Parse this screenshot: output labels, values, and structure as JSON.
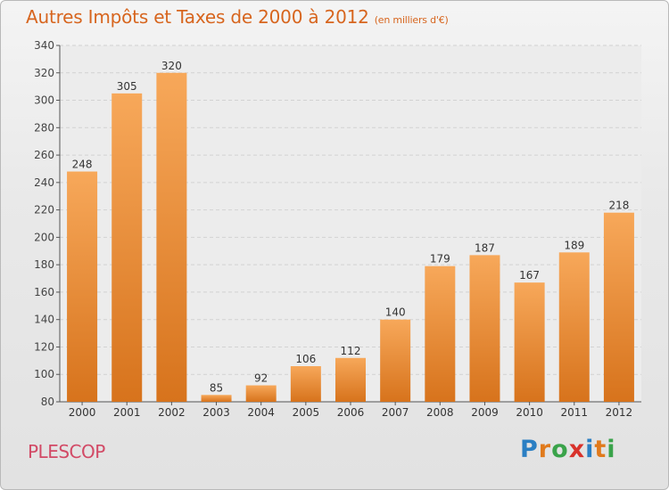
{
  "title": "Autres Impôts et Taxes de 2000 à 2012",
  "subtitle": "(en milliers d'€)",
  "place": "PLESCOP",
  "logo": {
    "letters": [
      "P",
      "r",
      "o",
      "x",
      "i",
      "t",
      "i"
    ],
    "colors": [
      "#2b7fc3",
      "#e07a1c",
      "#3aa34a",
      "#d8322b",
      "#2b7fc3",
      "#e07a1c",
      "#3aa34a"
    ]
  },
  "colors": {
    "bar_top": "#f7a85a",
    "bar_bottom": "#d7731c",
    "title": "#d7651e",
    "place": "#d24a66"
  },
  "chart_data": {
    "type": "bar",
    "title": "Autres Impôts et Taxes de 2000 à 2012",
    "subtitle": "(en milliers d'€)",
    "xlabel": "",
    "ylabel": "",
    "categories": [
      "2000",
      "2001",
      "2002",
      "2003",
      "2004",
      "2005",
      "2006",
      "2007",
      "2008",
      "2009",
      "2010",
      "2011",
      "2012"
    ],
    "values": [
      248,
      305,
      320,
      85,
      92,
      106,
      112,
      140,
      179,
      187,
      167,
      189,
      218
    ],
    "ylim": [
      80,
      340
    ],
    "yticks": [
      80,
      100,
      120,
      140,
      160,
      180,
      200,
      220,
      240,
      260,
      280,
      300,
      320,
      340
    ],
    "grid": true,
    "data_labels": true
  }
}
